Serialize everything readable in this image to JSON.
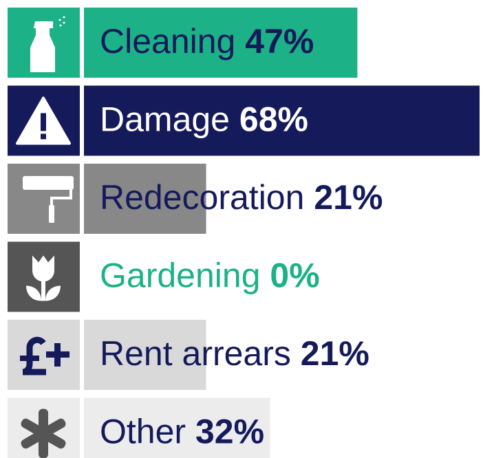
{
  "chart_data": {
    "type": "bar",
    "categories": [
      "Cleaning",
      "Damage",
      "Redecoration",
      "Gardening",
      "Rent arrears",
      "Other"
    ],
    "values": [
      47,
      68,
      21,
      0,
      21,
      32
    ],
    "value_labels": [
      "47%",
      "68%",
      "21%",
      "0%",
      "21%",
      "32%"
    ],
    "colors": [
      "#1db187",
      "#141a5a",
      "#888888",
      "#555555",
      "#d9d9d9",
      "#ececec"
    ],
    "text_colors": [
      "#141a5a",
      "#ffffff",
      "#141a5a",
      "#1db187",
      "#141a5a",
      "#141a5a"
    ]
  }
}
